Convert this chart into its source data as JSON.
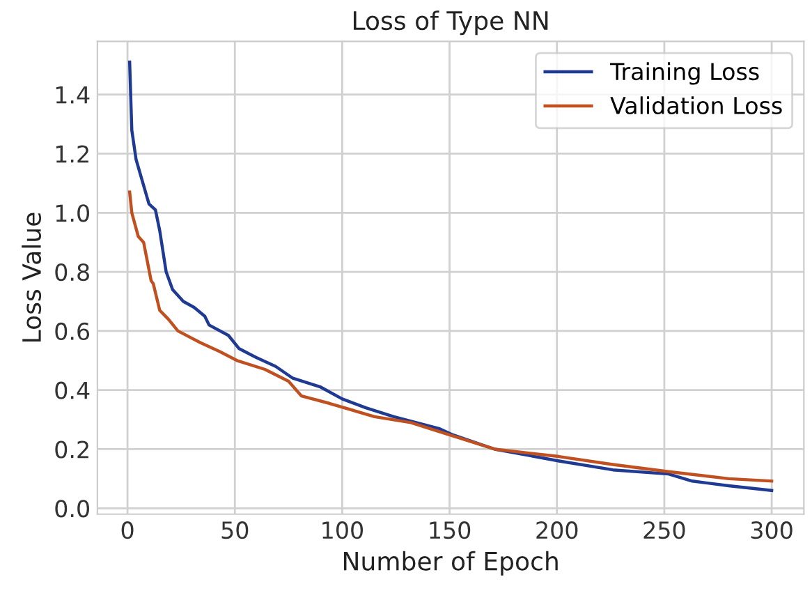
{
  "chart_data": {
    "type": "line",
    "title": "Loss of Type NN",
    "xlabel": "Number of Epoch",
    "ylabel": "Loss Value",
    "xlim": [
      -14,
      315
    ],
    "ylim": [
      -0.02,
      1.58
    ],
    "xticks": [
      0,
      50,
      100,
      150,
      200,
      250,
      300
    ],
    "yticks": [
      {
        "value": 0,
        "label": "0.0"
      },
      0.2,
      0.4,
      0.6,
      0.8,
      {
        "value": 1,
        "label": "1.0"
      },
      1.2,
      1.4
    ],
    "grid": true,
    "legend": "top right",
    "marker": "none",
    "line_style": "solid",
    "series": [
      {
        "name": "Training Loss",
        "color": "#1f3a93",
        "x": [
          1,
          2,
          4,
          10,
          13,
          15,
          18,
          21,
          26,
          31,
          36,
          38,
          47,
          52,
          60,
          69,
          77,
          90,
          100,
          111,
          124,
          145,
          151,
          171,
          201,
          226,
          252,
          263,
          280,
          300
        ],
        "values": [
          1.51,
          1.28,
          1.18,
          1.03,
          1.01,
          0.94,
          0.8,
          0.74,
          0.7,
          0.68,
          0.65,
          0.62,
          0.585,
          0.54,
          0.51,
          0.48,
          0.44,
          0.41,
          0.37,
          0.34,
          0.31,
          0.27,
          0.25,
          0.2,
          0.16,
          0.13,
          0.116,
          0.092,
          0.076,
          0.06
        ]
      },
      {
        "name": "Validation Loss",
        "color": "#c0501f",
        "x": [
          1,
          2,
          5,
          7.5,
          11,
          12,
          15,
          19,
          23.5,
          34,
          43,
          51,
          64,
          75,
          81,
          94,
          115,
          132,
          145,
          171,
          201,
          226,
          252,
          280,
          300
        ],
        "values": [
          1.07,
          1.0,
          0.92,
          0.9,
          0.77,
          0.76,
          0.67,
          0.64,
          0.6,
          0.56,
          0.53,
          0.5,
          0.47,
          0.43,
          0.38,
          0.355,
          0.31,
          0.29,
          0.26,
          0.2,
          0.175,
          0.148,
          0.124,
          0.1,
          0.092
        ]
      }
    ]
  }
}
